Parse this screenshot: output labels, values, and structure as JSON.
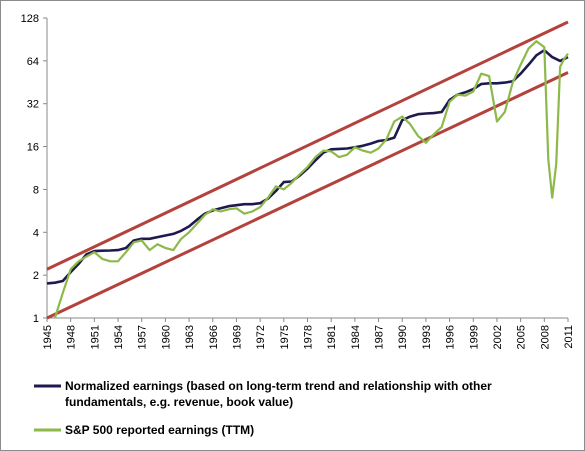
{
  "chart_data": {
    "type": "line",
    "title": "",
    "xlabel": "",
    "ylabel": "",
    "yscale": "log2",
    "ylim": [
      1,
      128
    ],
    "xlim": [
      1945,
      2011
    ],
    "grid": false,
    "legend_position": "bottom",
    "y_ticks": [
      "1",
      "2",
      "4",
      "8",
      "16",
      "32",
      "64",
      "128"
    ],
    "x_ticks": [
      "1945",
      "1948",
      "1951",
      "1954",
      "1957",
      "1960",
      "1963",
      "1966",
      "1969",
      "1972",
      "1975",
      "1978",
      "1981",
      "1984",
      "1987",
      "1990",
      "1993",
      "1996",
      "1999",
      "2002",
      "2005",
      "2008",
      "2011"
    ],
    "series": [
      {
        "name": "Normalized earnings (based on long-term trend and relationship with other fundamentals, e.g. revenue, book value)",
        "color": "#1f1a4d",
        "x": [
          1945,
          1946,
          1947,
          1948,
          1949,
          1950,
          1951,
          1952,
          1953,
          1954,
          1955,
          1956,
          1957,
          1958,
          1959,
          1960,
          1961,
          1962,
          1963,
          1964,
          1965,
          1966,
          1967,
          1968,
          1969,
          1970,
          1971,
          1972,
          1973,
          1974,
          1975,
          1976,
          1977,
          1978,
          1979,
          1980,
          1981,
          1982,
          1983,
          1984,
          1985,
          1986,
          1987,
          1988,
          1989,
          1990,
          1991,
          1992,
          1993,
          1994,
          1995,
          1996,
          1997,
          1998,
          1999,
          2000,
          2001,
          2002,
          2003,
          2004,
          2005,
          2006,
          2007,
          2008,
          2009,
          2010,
          2011
        ],
        "values": [
          1.75,
          1.77,
          1.82,
          2.1,
          2.4,
          2.8,
          2.95,
          2.97,
          2.98,
          3.0,
          3.1,
          3.5,
          3.6,
          3.6,
          3.7,
          3.8,
          3.9,
          4.1,
          4.4,
          4.9,
          5.4,
          5.7,
          5.9,
          6.1,
          6.2,
          6.3,
          6.3,
          6.4,
          6.9,
          7.8,
          9.0,
          9.1,
          10.0,
          11.2,
          12.8,
          14.5,
          15.3,
          15.4,
          15.5,
          15.8,
          16.2,
          16.8,
          17.5,
          17.8,
          18.5,
          24.5,
          26.0,
          27.0,
          27.3,
          27.5,
          28.0,
          34.0,
          37.0,
          38.5,
          40.5,
          44.0,
          44.5,
          44.5,
          45.0,
          46.0,
          52.0,
          60.0,
          70.0,
          76.0,
          68.0,
          64.0,
          68.0
        ]
      },
      {
        "name": "S&P 500 reported earnings (TTM)",
        "color": "#8db94a",
        "x": [
          1946,
          1947,
          1948,
          1949,
          1950,
          1951,
          1952,
          1953,
          1954,
          1955,
          1956,
          1957,
          1958,
          1959,
          1960,
          1961,
          1962,
          1963,
          1964,
          1965,
          1966,
          1967,
          1968,
          1969,
          1970,
          1971,
          1972,
          1973,
          1974,
          1975,
          1976,
          1977,
          1978,
          1979,
          1980,
          1981,
          1982,
          1983,
          1984,
          1985,
          1986,
          1987,
          1988,
          1989,
          1990,
          1991,
          1992,
          1993,
          1994,
          1995,
          1996,
          1997,
          1998,
          1999,
          2000,
          2001,
          2002,
          2003,
          2004,
          2005,
          2006,
          2007,
          2008.0,
          2008.5,
          2009.0,
          2009.5,
          2010.0,
          2010.5,
          2011
        ],
        "values": [
          1.0,
          1.5,
          2.2,
          2.5,
          2.7,
          2.9,
          2.6,
          2.5,
          2.5,
          2.9,
          3.4,
          3.5,
          3.0,
          3.3,
          3.1,
          3.0,
          3.6,
          4.0,
          4.6,
          5.3,
          5.8,
          5.6,
          5.8,
          5.9,
          5.4,
          5.6,
          6.0,
          7.0,
          8.4,
          8.0,
          8.9,
          10.2,
          11.5,
          13.5,
          15.0,
          14.8,
          13.5,
          14.0,
          15.8,
          15.0,
          14.5,
          15.5,
          18.0,
          24.0,
          26.0,
          23.0,
          19.0,
          17.0,
          19.5,
          22.0,
          33.0,
          37.0,
          36.5,
          39.0,
          52.0,
          50.0,
          24.0,
          28.0,
          45.0,
          60.0,
          78.0,
          88.0,
          80.0,
          13.0,
          7.0,
          12.0,
          58.0,
          66.0,
          72.0
        ]
      }
    ],
    "trend_lines": [
      {
        "color": "#b4423c",
        "x": [
          1945,
          2011
        ],
        "values": [
          2.2,
          120
        ]
      },
      {
        "color": "#b4423c",
        "x": [
          1945,
          2011
        ],
        "values": [
          1.0,
          53
        ]
      }
    ]
  }
}
